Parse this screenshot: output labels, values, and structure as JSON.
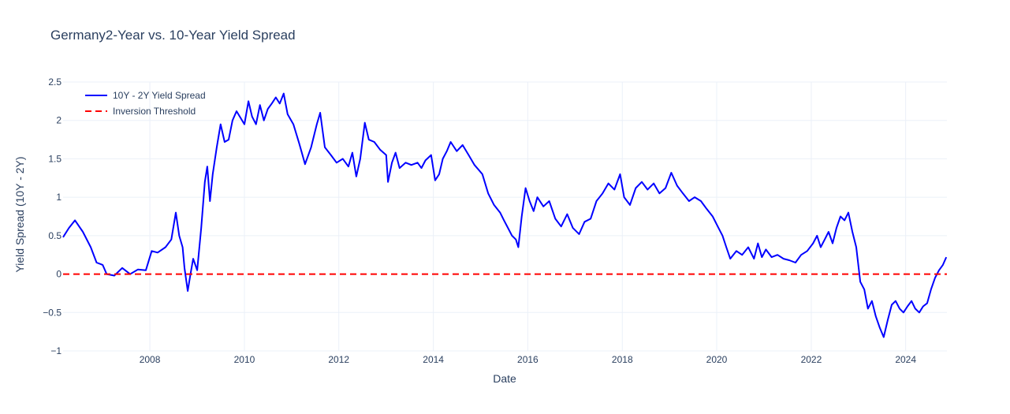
{
  "chart_data": {
    "type": "line",
    "title": "Germany2-Year vs. 10-Year Yield Spread",
    "xlabel": "Date",
    "ylabel": "Yield Spread (10Y - 2Y)",
    "xlim": [
      "2006-03-01",
      "2024-11-15"
    ],
    "ylim": [
      -1,
      2.5
    ],
    "x_ticks": [
      "2008",
      "2010",
      "2012",
      "2014",
      "2016",
      "2018",
      "2020",
      "2022",
      "2024"
    ],
    "y_ticks": [
      "2.5",
      "2",
      "1.5",
      "1",
      "0.5",
      "0",
      "−0.5",
      "−1"
    ],
    "grid": true,
    "legend_position": "top-left",
    "series": [
      {
        "name": "10Y - 2Y Yield Spread",
        "color": "#0000ff",
        "dash": "solid",
        "points": [
          [
            "2006-03-01",
            0.48
          ],
          [
            "2006-04-15",
            0.6
          ],
          [
            "2006-06-01",
            0.7
          ],
          [
            "2006-08-01",
            0.55
          ],
          [
            "2006-10-01",
            0.35
          ],
          [
            "2006-11-15",
            0.15
          ],
          [
            "2007-01-01",
            0.12
          ],
          [
            "2007-02-01",
            0.0
          ],
          [
            "2007-04-01",
            -0.02
          ],
          [
            "2007-06-01",
            0.08
          ],
          [
            "2007-08-01",
            0.0
          ],
          [
            "2007-10-01",
            0.06
          ],
          [
            "2007-12-01",
            0.05
          ],
          [
            "2008-01-15",
            0.3
          ],
          [
            "2008-03-01",
            0.28
          ],
          [
            "2008-05-01",
            0.35
          ],
          [
            "2008-06-15",
            0.45
          ],
          [
            "2008-07-20",
            0.8
          ],
          [
            "2008-08-15",
            0.5
          ],
          [
            "2008-09-10",
            0.35
          ],
          [
            "2008-09-25",
            0.08
          ],
          [
            "2008-10-20",
            -0.22
          ],
          [
            "2008-11-10",
            0.0
          ],
          [
            "2008-12-01",
            0.2
          ],
          [
            "2009-01-01",
            0.05
          ],
          [
            "2009-02-01",
            0.6
          ],
          [
            "2009-03-01",
            1.2
          ],
          [
            "2009-03-20",
            1.4
          ],
          [
            "2009-04-10",
            0.95
          ],
          [
            "2009-05-01",
            1.3
          ],
          [
            "2009-06-01",
            1.65
          ],
          [
            "2009-07-01",
            1.95
          ],
          [
            "2009-08-01",
            1.72
          ],
          [
            "2009-09-01",
            1.75
          ],
          [
            "2009-10-01",
            2.0
          ],
          [
            "2009-11-01",
            2.12
          ],
          [
            "2010-01-01",
            1.95
          ],
          [
            "2010-02-01",
            2.25
          ],
          [
            "2010-03-01",
            2.05
          ],
          [
            "2010-04-01",
            1.95
          ],
          [
            "2010-05-01",
            2.2
          ],
          [
            "2010-06-01",
            2.0
          ],
          [
            "2010-07-01",
            2.15
          ],
          [
            "2010-08-01",
            2.22
          ],
          [
            "2010-09-01",
            2.3
          ],
          [
            "2010-10-01",
            2.22
          ],
          [
            "2010-11-01",
            2.35
          ],
          [
            "2010-12-01",
            2.08
          ],
          [
            "2011-01-15",
            1.95
          ],
          [
            "2011-03-01",
            1.7
          ],
          [
            "2011-04-15",
            1.43
          ],
          [
            "2011-06-01",
            1.65
          ],
          [
            "2011-07-15",
            1.95
          ],
          [
            "2011-08-10",
            2.1
          ],
          [
            "2011-09-15",
            1.65
          ],
          [
            "2011-11-01",
            1.55
          ],
          [
            "2011-12-15",
            1.45
          ],
          [
            "2012-02-01",
            1.5
          ],
          [
            "2012-03-15",
            1.4
          ],
          [
            "2012-04-15",
            1.58
          ],
          [
            "2012-05-15",
            1.27
          ],
          [
            "2012-06-15",
            1.5
          ],
          [
            "2012-07-20",
            1.97
          ],
          [
            "2012-08-20",
            1.75
          ],
          [
            "2012-10-01",
            1.72
          ],
          [
            "2012-11-15",
            1.62
          ],
          [
            "2013-01-01",
            1.55
          ],
          [
            "2013-01-15",
            1.2
          ],
          [
            "2013-02-15",
            1.45
          ],
          [
            "2013-03-15",
            1.58
          ],
          [
            "2013-04-15",
            1.38
          ],
          [
            "2013-06-01",
            1.45
          ],
          [
            "2013-07-15",
            1.42
          ],
          [
            "2013-09-01",
            1.45
          ],
          [
            "2013-10-01",
            1.38
          ],
          [
            "2013-11-01",
            1.48
          ],
          [
            "2013-12-15",
            1.55
          ],
          [
            "2014-01-15",
            1.22
          ],
          [
            "2014-02-15",
            1.3
          ],
          [
            "2014-03-15",
            1.5
          ],
          [
            "2014-04-15",
            1.6
          ],
          [
            "2014-05-15",
            1.72
          ],
          [
            "2014-07-01",
            1.6
          ],
          [
            "2014-08-15",
            1.68
          ],
          [
            "2014-10-01",
            1.55
          ],
          [
            "2014-11-15",
            1.42
          ],
          [
            "2015-01-15",
            1.3
          ],
          [
            "2015-03-01",
            1.05
          ],
          [
            "2015-04-15",
            0.9
          ],
          [
            "2015-06-01",
            0.8
          ],
          [
            "2015-07-01",
            0.7
          ],
          [
            "2015-08-01",
            0.6
          ],
          [
            "2015-09-01",
            0.5
          ],
          [
            "2015-10-01",
            0.45
          ],
          [
            "2015-10-20",
            0.35
          ],
          [
            "2015-11-15",
            0.75
          ],
          [
            "2015-12-15",
            1.12
          ],
          [
            "2016-01-15",
            0.95
          ],
          [
            "2016-02-15",
            0.82
          ],
          [
            "2016-03-15",
            1.0
          ],
          [
            "2016-05-01",
            0.88
          ],
          [
            "2016-06-15",
            0.95
          ],
          [
            "2016-08-01",
            0.72
          ],
          [
            "2016-09-15",
            0.62
          ],
          [
            "2016-11-01",
            0.78
          ],
          [
            "2016-12-15",
            0.6
          ],
          [
            "2017-02-01",
            0.52
          ],
          [
            "2017-03-15",
            0.68
          ],
          [
            "2017-05-01",
            0.72
          ],
          [
            "2017-06-15",
            0.95
          ],
          [
            "2017-08-01",
            1.05
          ],
          [
            "2017-09-15",
            1.18
          ],
          [
            "2017-11-01",
            1.1
          ],
          [
            "2017-12-15",
            1.3
          ],
          [
            "2018-01-15",
            1.0
          ],
          [
            "2018-03-01",
            0.9
          ],
          [
            "2018-04-15",
            1.12
          ],
          [
            "2018-06-01",
            1.2
          ],
          [
            "2018-07-15",
            1.1
          ],
          [
            "2018-09-01",
            1.18
          ],
          [
            "2018-10-15",
            1.05
          ],
          [
            "2018-12-01",
            1.12
          ],
          [
            "2019-01-15",
            1.32
          ],
          [
            "2019-03-01",
            1.15
          ],
          [
            "2019-04-15",
            1.05
          ],
          [
            "2019-06-01",
            0.95
          ],
          [
            "2019-07-15",
            1.0
          ],
          [
            "2019-09-01",
            0.95
          ],
          [
            "2019-10-15",
            0.85
          ],
          [
            "2019-12-01",
            0.75
          ],
          [
            "2020-01-15",
            0.6
          ],
          [
            "2020-02-15",
            0.5
          ],
          [
            "2020-03-15",
            0.35
          ],
          [
            "2020-04-15",
            0.2
          ],
          [
            "2020-06-01",
            0.3
          ],
          [
            "2020-07-15",
            0.25
          ],
          [
            "2020-09-01",
            0.35
          ],
          [
            "2020-10-15",
            0.2
          ],
          [
            "2020-11-15",
            0.4
          ],
          [
            "2020-12-15",
            0.22
          ],
          [
            "2021-01-15",
            0.32
          ],
          [
            "2021-03-01",
            0.22
          ],
          [
            "2021-04-15",
            0.25
          ],
          [
            "2021-06-01",
            0.2
          ],
          [
            "2021-07-15",
            0.18
          ],
          [
            "2021-09-01",
            0.15
          ],
          [
            "2021-10-15",
            0.25
          ],
          [
            "2021-12-01",
            0.3
          ],
          [
            "2022-01-15",
            0.4
          ],
          [
            "2022-02-15",
            0.5
          ],
          [
            "2022-03-15",
            0.35
          ],
          [
            "2022-04-15",
            0.45
          ],
          [
            "2022-05-15",
            0.55
          ],
          [
            "2022-06-15",
            0.4
          ],
          [
            "2022-07-15",
            0.6
          ],
          [
            "2022-08-15",
            0.75
          ],
          [
            "2022-09-15",
            0.7
          ],
          [
            "2022-10-15",
            0.8
          ],
          [
            "2022-11-15",
            0.55
          ],
          [
            "2022-12-15",
            0.35
          ],
          [
            "2023-01-15",
            -0.1
          ],
          [
            "2023-02-15",
            -0.2
          ],
          [
            "2023-03-15",
            -0.45
          ],
          [
            "2023-04-15",
            -0.35
          ],
          [
            "2023-05-15",
            -0.55
          ],
          [
            "2023-06-15",
            -0.7
          ],
          [
            "2023-07-15",
            -0.82
          ],
          [
            "2023-08-15",
            -0.6
          ],
          [
            "2023-09-15",
            -0.4
          ],
          [
            "2023-10-15",
            -0.35
          ],
          [
            "2023-11-15",
            -0.45
          ],
          [
            "2023-12-15",
            -0.5
          ],
          [
            "2024-01-15",
            -0.42
          ],
          [
            "2024-02-15",
            -0.35
          ],
          [
            "2024-03-15",
            -0.45
          ],
          [
            "2024-04-15",
            -0.5
          ],
          [
            "2024-05-15",
            -0.42
          ],
          [
            "2024-06-15",
            -0.38
          ],
          [
            "2024-07-15",
            -0.2
          ],
          [
            "2024-08-15",
            -0.05
          ],
          [
            "2024-09-15",
            0.05
          ],
          [
            "2024-10-15",
            0.12
          ],
          [
            "2024-11-10",
            0.22
          ]
        ]
      },
      {
        "name": "Inversion Threshold",
        "color": "#ff0000",
        "dash": "dash",
        "points": [
          [
            "2006-03-01",
            0
          ],
          [
            "2024-11-15",
            0
          ]
        ]
      }
    ]
  }
}
